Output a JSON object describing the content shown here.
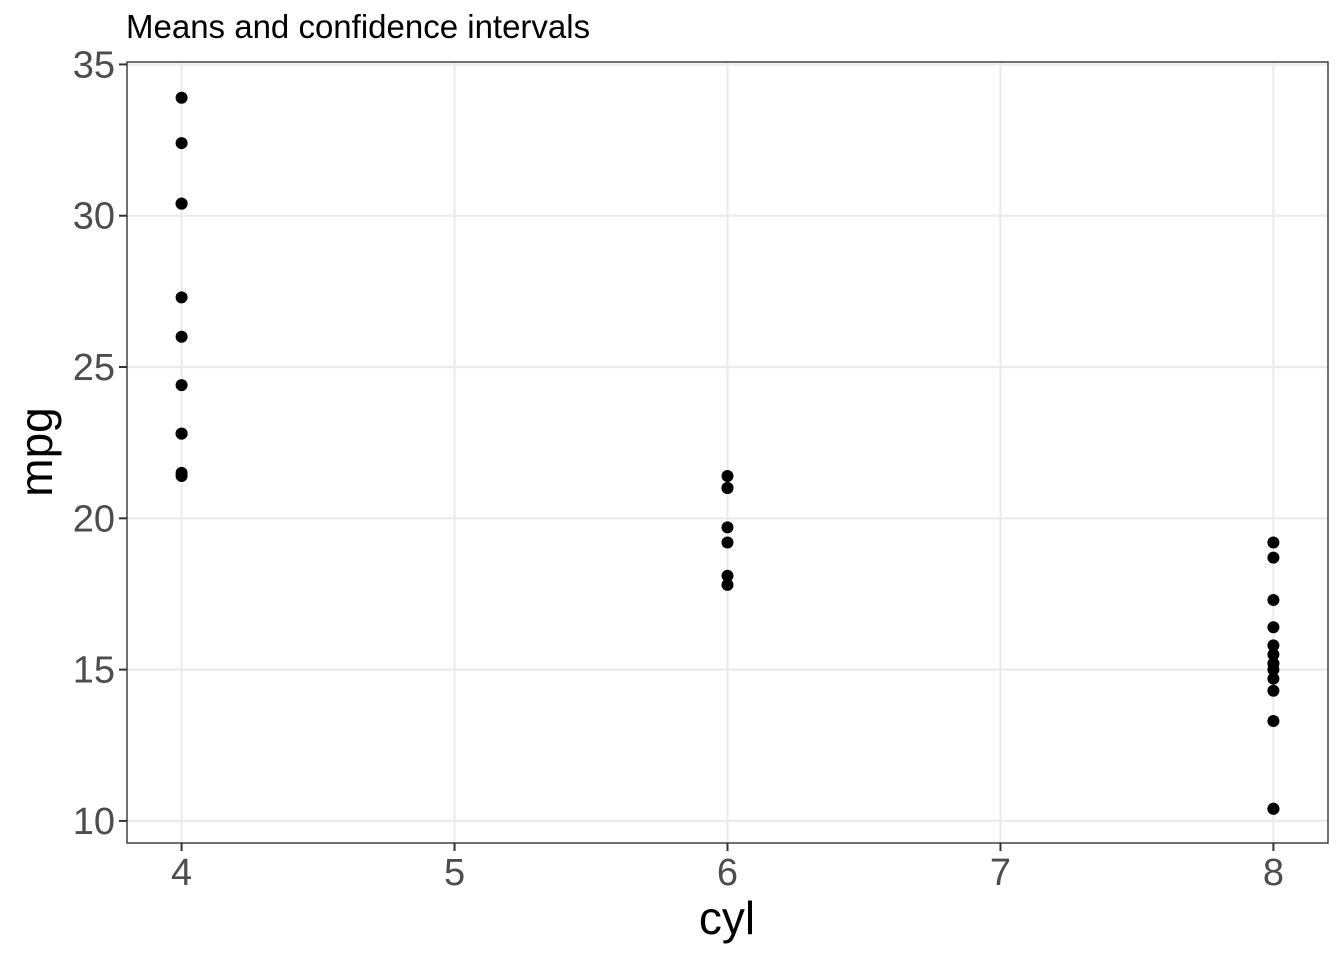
{
  "chart_data": {
    "type": "scatter",
    "title": "Means and confidence intervals",
    "xlabel": "cyl",
    "ylabel": "mpg",
    "xlim": [
      3.8,
      8.2
    ],
    "ylim": [
      9.27,
      35.08
    ],
    "x_ticks": [
      4,
      5,
      6,
      7,
      8
    ],
    "y_ticks": [
      10,
      15,
      20,
      25,
      30,
      35
    ],
    "grid": true,
    "legend": "none",
    "point_color": "#000000",
    "series": [
      {
        "x": [
          4,
          4,
          4,
          4,
          4,
          4,
          4,
          4,
          4,
          4,
          4,
          6,
          6,
          6,
          6,
          6,
          6,
          6,
          8,
          8,
          8,
          8,
          8,
          8,
          8,
          8,
          8,
          8,
          8,
          8,
          8,
          8
        ],
        "y": [
          33.9,
          32.4,
          30.4,
          30.4,
          27.3,
          26.0,
          24.4,
          22.8,
          22.8,
          21.5,
          21.4,
          21.4,
          21.0,
          21.0,
          19.7,
          19.2,
          18.1,
          17.8,
          19.2,
          18.7,
          17.3,
          16.4,
          15.8,
          15.5,
          15.2,
          15.2,
          15.0,
          14.7,
          14.3,
          13.3,
          10.4,
          10.4
        ]
      }
    ]
  }
}
